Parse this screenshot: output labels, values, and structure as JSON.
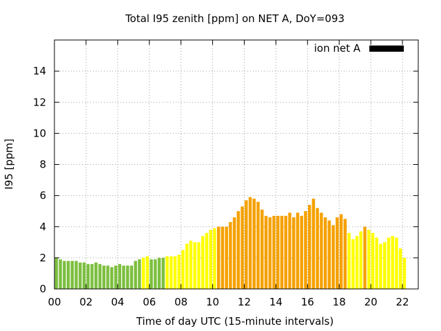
{
  "chart_data": {
    "type": "bar",
    "title": "Total I95 zenith [ppm] on NET A, DoY=093",
    "xlabel": "Time of day UTC (15-minute intervals)",
    "ylabel": "I95 [ppm]",
    "xlim": [
      0,
      23
    ],
    "ylim": [
      0,
      16
    ],
    "x_interval_hours": 0.25,
    "x_ticks": [
      0,
      2,
      4,
      6,
      8,
      10,
      12,
      14,
      16,
      18,
      20,
      22
    ],
    "x_tick_labels": [
      "00",
      "02",
      "04",
      "06",
      "08",
      "10",
      "12",
      "14",
      "16",
      "18",
      "20",
      "22"
    ],
    "y_ticks": [
      0,
      2,
      4,
      6,
      8,
      10,
      12,
      14
    ],
    "y_tick_labels": [
      "0",
      "2",
      "4",
      "6",
      "8",
      "10",
      "12",
      "14"
    ],
    "grid": true,
    "legend": {
      "position": "top-right",
      "entries": [
        {
          "label": "ion net A",
          "color": "#000000"
        }
      ]
    },
    "level_colors": {
      "green": "#7dbf40",
      "yellow": "#ffff00",
      "orange": "#f5a100"
    },
    "series": [
      {
        "name": "ion net A",
        "values": [
          2.0,
          1.9,
          1.8,
          1.8,
          1.8,
          1.8,
          1.7,
          1.7,
          1.6,
          1.6,
          1.7,
          1.6,
          1.5,
          1.5,
          1.4,
          1.5,
          1.6,
          1.5,
          1.5,
          1.5,
          1.8,
          1.9,
          2.0,
          2.1,
          1.9,
          1.9,
          2.0,
          2.0,
          2.1,
          2.1,
          2.1,
          2.2,
          2.5,
          2.9,
          3.1,
          3.0,
          3.0,
          3.4,
          3.6,
          3.8,
          3.9,
          4.0,
          4.0,
          4.0,
          4.3,
          4.6,
          5.0,
          5.3,
          5.7,
          5.9,
          5.8,
          5.6,
          5.1,
          4.7,
          4.6,
          4.7,
          4.7,
          4.7,
          4.7,
          4.9,
          4.6,
          4.9,
          4.7,
          5.0,
          5.4,
          5.8,
          5.2,
          4.9,
          4.6,
          4.4,
          4.1,
          4.6,
          4.8,
          4.5,
          3.6,
          3.2,
          3.4,
          3.7,
          4.0,
          3.8,
          3.6,
          3.3,
          2.9,
          3.0,
          3.3,
          3.4,
          3.3,
          2.6,
          2.0
        ],
        "colors": [
          "green",
          "green",
          "green",
          "green",
          "green",
          "green",
          "green",
          "green",
          "green",
          "green",
          "green",
          "green",
          "green",
          "green",
          "green",
          "green",
          "green",
          "green",
          "green",
          "green",
          "green",
          "green",
          "yellow",
          "yellow",
          "green",
          "green",
          "green",
          "green",
          "yellow",
          "yellow",
          "yellow",
          "yellow",
          "yellow",
          "yellow",
          "yellow",
          "yellow",
          "yellow",
          "yellow",
          "yellow",
          "yellow",
          "yellow",
          "orange",
          "orange",
          "orange",
          "orange",
          "orange",
          "orange",
          "orange",
          "orange",
          "orange",
          "orange",
          "orange",
          "orange",
          "orange",
          "orange",
          "orange",
          "orange",
          "orange",
          "orange",
          "orange",
          "orange",
          "orange",
          "orange",
          "orange",
          "orange",
          "orange",
          "orange",
          "orange",
          "orange",
          "orange",
          "orange",
          "orange",
          "orange",
          "orange",
          "yellow",
          "yellow",
          "yellow",
          "yellow",
          "orange",
          "yellow",
          "yellow",
          "yellow",
          "yellow",
          "yellow",
          "yellow",
          "yellow",
          "yellow",
          "yellow",
          "yellow"
        ]
      }
    ]
  }
}
